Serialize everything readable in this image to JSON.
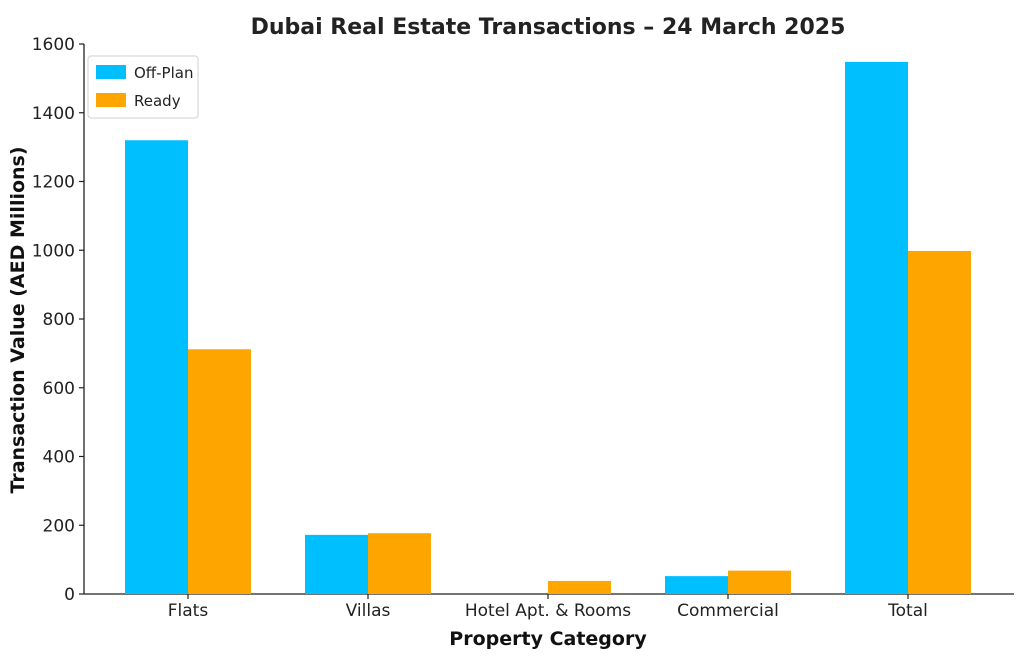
{
  "chart_data": {
    "type": "bar",
    "title": "Dubai Real Estate Transactions – 24 March 2025",
    "xlabel": "Property Category",
    "ylabel": "Transaction Value (AED Millions)",
    "categories": [
      "Flats",
      "Villas",
      "Hotel Apt. & Rooms",
      "Commercial",
      "Total"
    ],
    "series": [
      {
        "name": "Off-Plan",
        "color": "#00BFFF",
        "values": [
          1320,
          172,
          0,
          52,
          1548
        ]
      },
      {
        "name": "Ready",
        "color": "#FFA500",
        "values": [
          712,
          177,
          38,
          68,
          998
        ]
      }
    ],
    "ylim": [
      0,
      1600
    ],
    "yticks": [
      0,
      200,
      400,
      600,
      800,
      1000,
      1200,
      1400,
      1600
    ],
    "grid": false,
    "legend_position": "top-left"
  }
}
